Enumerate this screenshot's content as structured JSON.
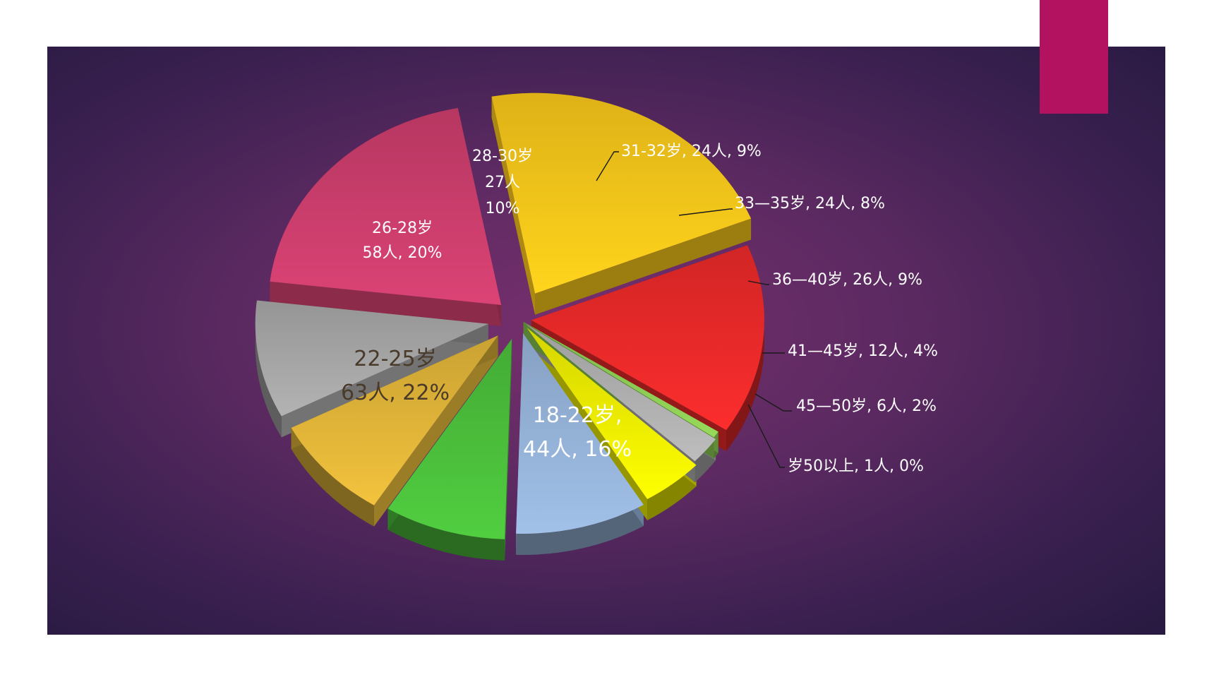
{
  "slide": {
    "accent_color": "#b2125f",
    "panel_color": "#5d2a62"
  },
  "chart_data": {
    "type": "pie",
    "style": "3d-exploded",
    "legend": "none",
    "slices": [
      {
        "category": "18-22岁",
        "count": 44,
        "percent": 16,
        "color": "#ee2a2a",
        "label_lines": [
          "18-22岁,",
          "44人, 16%"
        ],
        "label_style": "inside-large"
      },
      {
        "category": "22-25岁",
        "count": 63,
        "percent": 22,
        "color": "#fcc91a",
        "label_lines": [
          "22-25岁",
          "63人, 22%"
        ],
        "label_style": "inside-large-dark"
      },
      {
        "category": "26-28岁",
        "count": 58,
        "percent": 20,
        "color": "#cf3f6e",
        "label_lines": [
          "26-28岁",
          "58人, 20%"
        ],
        "label_style": "inside"
      },
      {
        "category": "28-30岁",
        "count": 27,
        "percent": 10,
        "color": "#a9a9a9",
        "label_lines": [
          "28-30岁",
          "27人",
          "10%"
        ],
        "label_style": "stacked"
      },
      {
        "category": "31-32岁",
        "count": 24,
        "percent": 9,
        "color": "#e5b83a",
        "label_lines": [
          "31-32岁, 24人, 9%"
        ],
        "label_style": "leader"
      },
      {
        "category": "33—35岁",
        "count": 24,
        "percent": 8,
        "color": "#4cc23c",
        "label_lines": [
          "33—35岁, 24人, 8%"
        ],
        "label_style": "leader"
      },
      {
        "category": "36—40岁",
        "count": 26,
        "percent": 9,
        "color": "#98b6dc",
        "label_lines": [
          "36—40岁, 26人, 9%"
        ],
        "label_style": "leader"
      },
      {
        "category": "41—45岁",
        "count": 12,
        "percent": 4,
        "color": "#f2f200",
        "label_lines": [
          "41—45岁, 12人, 4%"
        ],
        "label_style": "leader"
      },
      {
        "category": "45—50岁",
        "count": 6,
        "percent": 2,
        "color": "#b2b2b2",
        "label_lines": [
          "45—50岁, 6人, 2%"
        ],
        "label_style": "leader"
      },
      {
        "category": "岁50以上",
        "count": 1,
        "percent": 0,
        "color": "#8ecf55",
        "label_lines": [
          "岁50以上, 1人, 0%"
        ],
        "label_style": "leader"
      }
    ]
  }
}
